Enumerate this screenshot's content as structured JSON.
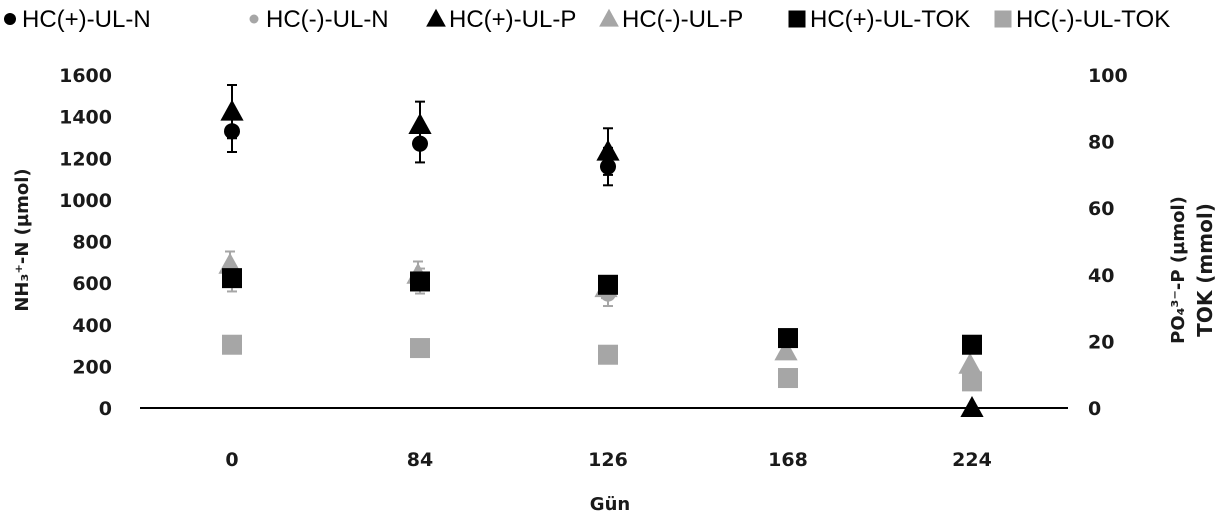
{
  "chart_data": {
    "type": "scatter",
    "legend_position": "top",
    "grid": false,
    "xlabel": "Gün",
    "ylabel_left": "NH₃⁺-N (µmol)",
    "ylabel_right": [
      "PO₄³⁻-P (µmol)",
      "TOK (mmol)"
    ],
    "categories": [
      "0",
      "84",
      "126",
      "168",
      "224"
    ],
    "ylim_left": [
      0,
      1600
    ],
    "yticks_left": [
      0,
      200,
      400,
      600,
      800,
      1000,
      1200,
      1400,
      1600
    ],
    "ylim_right": [
      0,
      100
    ],
    "yticks_right": [
      0,
      20,
      40,
      60,
      80,
      100
    ],
    "series": [
      {
        "name": "HC(+)-UL-N",
        "marker": "circle",
        "color": "#000000",
        "axis": "left",
        "values": [
          1330,
          1270,
          1160,
          null,
          null
        ],
        "errors": [
          100,
          90,
          90,
          null,
          null
        ]
      },
      {
        "name": "HC(-)-UL-N",
        "marker": "circle",
        "color": "#a6a6a6",
        "axis": "left",
        "values": [
          620,
          610,
          550,
          null,
          null
        ],
        "errors": [
          60,
          60,
          60,
          null,
          null
        ]
      },
      {
        "name": "HC(+)-UL-P",
        "marker": "triangle",
        "color": "#000000",
        "axis": "right",
        "values": [
          89,
          85,
          77,
          null,
          0
        ],
        "errors": [
          8,
          7,
          7,
          null,
          null
        ]
      },
      {
        "name": "HC(-)-UL-P",
        "marker": "triangle",
        "color": "#a6a6a6",
        "axis": "right",
        "values": [
          43,
          40,
          36,
          17,
          13
        ],
        "errors": [
          4,
          4,
          3,
          null,
          null
        ]
      },
      {
        "name": "HC(+)-UL-TOK",
        "marker": "square",
        "color": "#000000",
        "axis": "right",
        "values": [
          39,
          38,
          37,
          21,
          19
        ],
        "errors": [
          null,
          null,
          null,
          null,
          null
        ]
      },
      {
        "name": "HC(-)-UL-TOK",
        "marker": "square",
        "color": "#a6a6a6",
        "axis": "right",
        "values": [
          19,
          18,
          16,
          9,
          8
        ],
        "errors": [
          null,
          null,
          null,
          null,
          null
        ]
      }
    ]
  }
}
